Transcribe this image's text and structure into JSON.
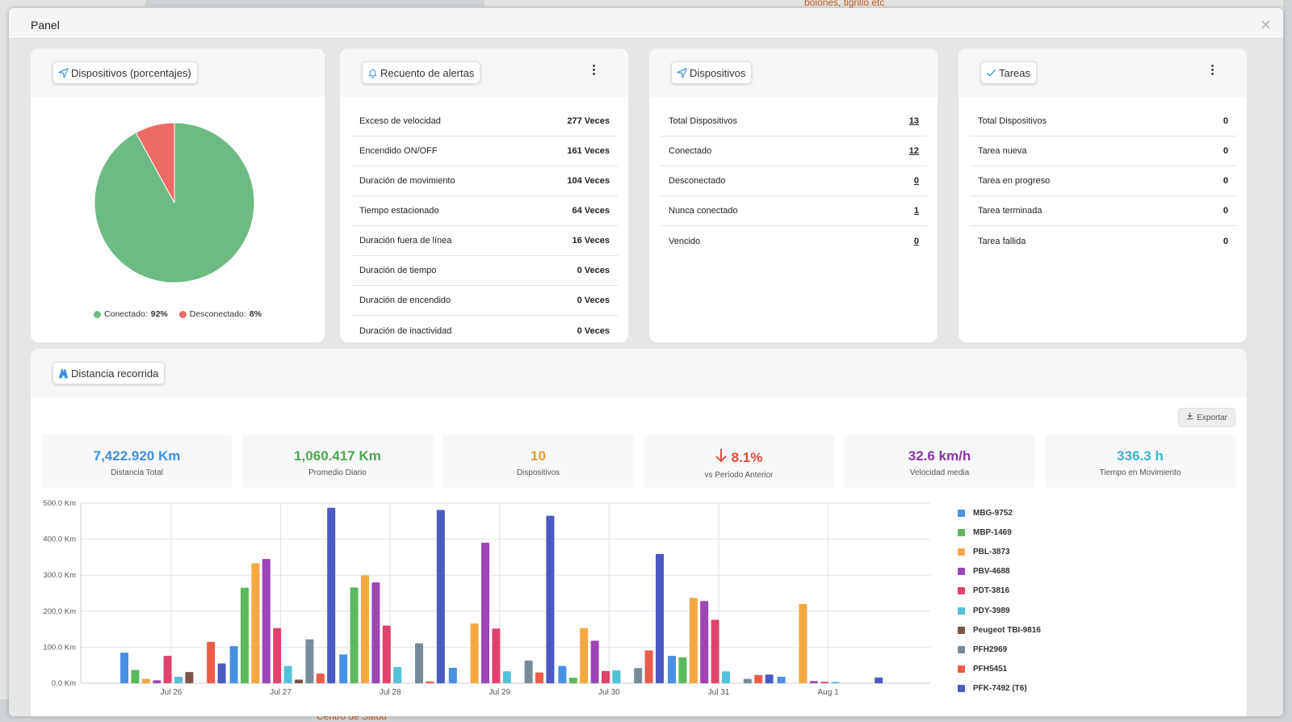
{
  "background": {
    "map_labels": [
      "bolones, tigrillo etc",
      "Centro de Salud"
    ]
  },
  "modal": {
    "title": "Panel"
  },
  "pie_card": {
    "title": "Dispositivos (porcentajes)",
    "legend": [
      {
        "label": "Conectado:",
        "value": "92%",
        "color": "#6dbb83"
      },
      {
        "label": "Desconectado:",
        "value": "8%",
        "color": "#ec6b65"
      }
    ]
  },
  "alerts_card": {
    "title": "Recuento de alertas",
    "rows": [
      {
        "label": "Exceso de velocidad",
        "value": "277 Veces"
      },
      {
        "label": "Encendido ON/OFF",
        "value": "161 Veces"
      },
      {
        "label": "Duración de movimiento",
        "value": "104 Veces"
      },
      {
        "label": "Tiempo estacionado",
        "value": "64 Veces"
      },
      {
        "label": "Duración fuera de línea",
        "value": "16 Veces"
      },
      {
        "label": "Duración de tiempo",
        "value": "0 Veces"
      },
      {
        "label": "Duración de encendido",
        "value": "0 Veces"
      },
      {
        "label": "Duración de inactividad",
        "value": "0 Veces"
      }
    ]
  },
  "devices_card": {
    "title": "Dispositivos",
    "rows": [
      {
        "label": "Total Dispositivos",
        "value": "13"
      },
      {
        "label": "Conectado",
        "value": "12"
      },
      {
        "label": "Desconectado",
        "value": "0"
      },
      {
        "label": "Nunca conectado",
        "value": "1"
      },
      {
        "label": "Vencido",
        "value": "0"
      }
    ]
  },
  "tasks_card": {
    "title": "Tareas",
    "rows": [
      {
        "label": "Total Dispositivos",
        "value": "0"
      },
      {
        "label": "Tarea nueva",
        "value": "0"
      },
      {
        "label": "Tarea en progreso",
        "value": "0"
      },
      {
        "label": "Tarea terminada",
        "value": "0"
      },
      {
        "label": "Tarea fallida",
        "value": "0"
      }
    ]
  },
  "distance_card": {
    "title": "Distancia recorrida",
    "export_label": "Exportar",
    "stats": [
      {
        "value": "7,422.920 Km",
        "label": "Distancia Total",
        "color": "#3d8fe0"
      },
      {
        "value": "1,060.417 Km",
        "label": "Promedio Diario",
        "color": "#4fa653"
      },
      {
        "value": "10",
        "label": "Dispositivos",
        "color": "#f29a2e"
      },
      {
        "value": "8.1%",
        "label": "vs Período Anterior",
        "color": "#e24a3b",
        "arrow": "down"
      },
      {
        "value": "32.6 km/h",
        "label": "Velocidad media",
        "color": "#8a37a6"
      },
      {
        "value": "336.3 h",
        "label": "Tiempo en Movimiento",
        "color": "#3ab6cf"
      }
    ]
  },
  "chart_data": [
    {
      "type": "pie",
      "series": [
        {
          "name": "Conectado",
          "value": 92,
          "color": "#6dbb83"
        },
        {
          "name": "Desconectado",
          "value": 8,
          "color": "#ec6b65"
        }
      ]
    },
    {
      "type": "bar",
      "categories": [
        "Jul 26",
        "Jul 27",
        "Jul 28",
        "Jul 29",
        "Jul 30",
        "Jul 31",
        "Aug 1"
      ],
      "ylim": [
        0,
        500
      ],
      "yticks": [
        "0.0 Km",
        "100.0 Km",
        "200.0 Km",
        "300.0 Km",
        "400.0 Km",
        "500.0 Km"
      ],
      "grid": true,
      "legend_position": "right",
      "series": [
        {
          "name": "MBG-9752",
          "color": "#4a90e2",
          "values": [
            85,
            103,
            80,
            43,
            48,
            76,
            18
          ]
        },
        {
          "name": "MBP-1469",
          "color": "#5cb85c",
          "values": [
            37,
            265,
            266,
            0,
            15,
            72,
            0
          ]
        },
        {
          "name": "PBL-3873",
          "color": "#f5a742",
          "values": [
            12,
            333,
            300,
            166,
            153,
            237,
            220
          ]
        },
        {
          "name": "PBV-4688",
          "color": "#9c44b8",
          "values": [
            8,
            345,
            280,
            390,
            118,
            228,
            6
          ]
        },
        {
          "name": "PDT-3816",
          "color": "#e0426e",
          "values": [
            76,
            153,
            160,
            152,
            34,
            176,
            4
          ]
        },
        {
          "name": "PDY-3989",
          "color": "#53c1d8",
          "values": [
            18,
            48,
            45,
            33,
            36,
            33,
            4
          ]
        },
        {
          "name": "Peugeot TBI-9816",
          "color": "#7a5546",
          "values": [
            31,
            10,
            0,
            0,
            0,
            0,
            0
          ]
        },
        {
          "name": "PFH2969",
          "color": "#778b98",
          "values": [
            0,
            122,
            111,
            63,
            42,
            12,
            0
          ]
        },
        {
          "name": "PFH5451",
          "color": "#ec5c49",
          "values": [
            115,
            27,
            5,
            30,
            91,
            23,
            0
          ]
        },
        {
          "name": "PFK-7492 (T6)",
          "color": "#4a5ac1",
          "values": [
            55,
            487,
            481,
            465,
            359,
            24,
            16
          ]
        }
      ]
    }
  ]
}
